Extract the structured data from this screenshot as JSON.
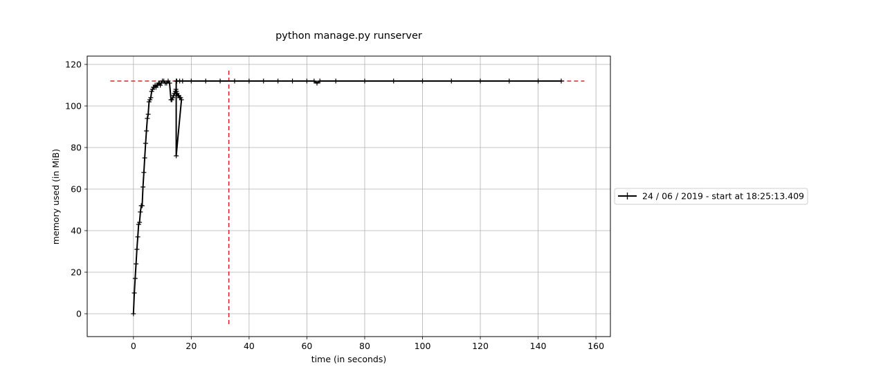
{
  "chart_data": {
    "type": "line",
    "title": "python manage.py runserver",
    "xlabel": "time (in seconds)",
    "ylabel": "memory used (in MiB)",
    "xlim": [
      -16,
      165
    ],
    "ylim": [
      -11,
      124
    ],
    "xticks": [
      0,
      20,
      40,
      60,
      80,
      100,
      120,
      140,
      160
    ],
    "yticks": [
      0,
      20,
      40,
      60,
      80,
      100,
      120
    ],
    "grid": true,
    "legend_position": "right",
    "series": [
      {
        "name": "24 / 06 / 2019 - start at 18:25:13.409",
        "color": "#000000",
        "marker": "+",
        "x": [
          0,
          0.3,
          0.6,
          0.9,
          1.2,
          1.5,
          1.8,
          2.1,
          2.4,
          2.7,
          3.0,
          3.3,
          3.6,
          3.9,
          4.2,
          4.5,
          4.8,
          5.1,
          5.4,
          5.7,
          6.0,
          6.3,
          6.6,
          6.9,
          7.2,
          7.5,
          7.8,
          8.1,
          8.4,
          8.7,
          9.0,
          9.3,
          9.6,
          10.0,
          10.5,
          11.0,
          11.5,
          12.0,
          12.5,
          13.0,
          13.3,
          13.6,
          13.9,
          14.2,
          14.5,
          14.7,
          14.9,
          15.1,
          15.4,
          15.7,
          16.0,
          16.3,
          16.6,
          14.8,
          14.8,
          15.0,
          16.0,
          17.0,
          20,
          25,
          30,
          35,
          40,
          45,
          50,
          55,
          60,
          62.5,
          63.5,
          64.5,
          70,
          80,
          90,
          100,
          110,
          120,
          130,
          140,
          148
        ],
        "y": [
          0,
          10,
          17,
          24,
          31,
          37,
          43,
          44,
          49,
          52,
          52,
          61,
          68,
          75,
          82,
          88,
          94,
          96,
          102,
          103,
          104,
          107,
          108,
          109,
          109,
          110,
          109,
          110,
          110,
          111,
          111,
          110,
          111,
          112,
          112,
          111,
          111,
          112,
          111,
          103,
          103,
          104,
          105,
          106,
          107,
          108,
          107,
          106,
          105,
          105,
          104,
          104,
          103,
          76,
          112,
          112,
          112,
          112,
          112,
          112,
          112,
          112,
          112,
          112,
          112,
          112,
          112,
          112,
          111,
          112,
          112,
          112,
          112,
          112,
          112,
          112,
          112,
          112,
          112
        ]
      }
    ],
    "reference_lines": [
      {
        "orientation": "horizontal",
        "y": 112,
        "x_range": [
          -8,
          156
        ],
        "color": "#d62728",
        "style": "dashed"
      },
      {
        "orientation": "vertical",
        "x": 33,
        "y_range": [
          -5,
          118
        ],
        "color": "#d62728",
        "style": "dashed"
      }
    ]
  }
}
